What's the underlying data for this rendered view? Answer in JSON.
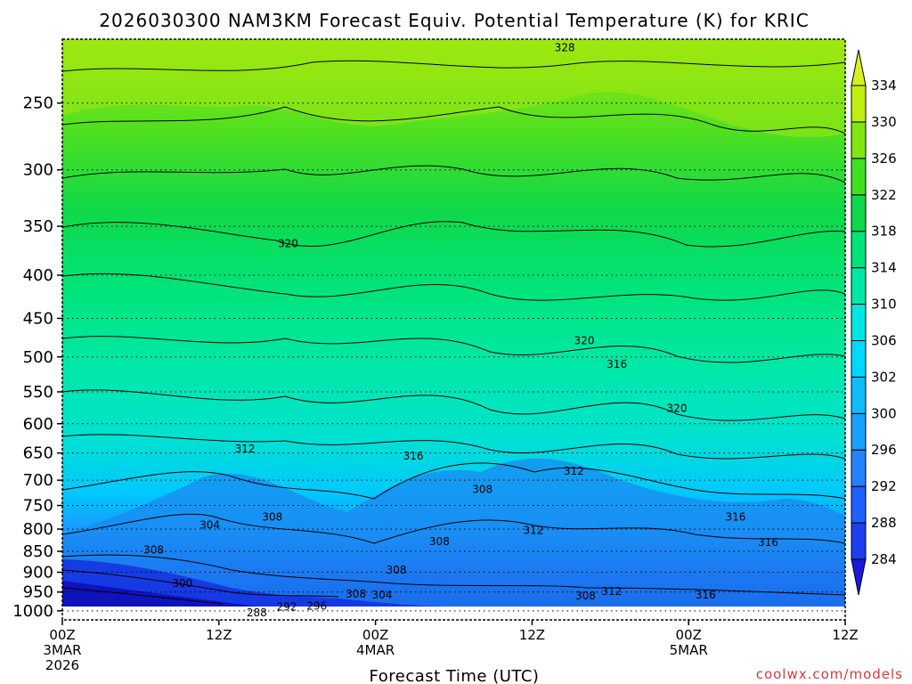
{
  "chart_data": {
    "type": "heatmap",
    "title": "2026030300 NAM3KM Forecast Equiv. Potential Temperature (K) for KRIC",
    "xlabel": "Forecast Time (UTC)",
    "ylabel": "",
    "credit": "coolwx.com/models",
    "y_axis": {
      "scale": "log-pressure",
      "range_hpa": [
        1025,
        210
      ],
      "ticks": [
        250,
        300,
        350,
        400,
        450,
        500,
        550,
        600,
        650,
        700,
        750,
        800,
        850,
        900,
        950,
        1000
      ]
    },
    "x_axis": {
      "range_hours": [
        0,
        60
      ],
      "ticks": [
        {
          "hour": 0,
          "label": [
            "00Z",
            "3MAR",
            "2026"
          ]
        },
        {
          "hour": 12,
          "label": [
            "12Z"
          ]
        },
        {
          "hour": 24,
          "label": [
            "00Z",
            "4MAR"
          ]
        },
        {
          "hour": 36,
          "label": [
            "12Z"
          ]
        },
        {
          "hour": 48,
          "label": [
            "00Z",
            "5MAR"
          ]
        },
        {
          "hour": 60,
          "label": [
            "12Z"
          ]
        }
      ]
    },
    "grid": "dotted horizontal at pressure ticks",
    "colorbar": {
      "placement": "right",
      "levels": [
        284,
        288,
        292,
        296,
        300,
        302,
        306,
        310,
        314,
        318,
        322,
        326,
        330,
        334
      ],
      "colors": [
        "#1a1ad8",
        "#1f3ef0",
        "#2060ff",
        "#2482ff",
        "#1aa0ff",
        "#10bcff",
        "#00d8ff",
        "#00e6e0",
        "#00e8a8",
        "#00e47a",
        "#10d84a",
        "#40e020",
        "#80e810",
        "#c0f010",
        "#d8f020"
      ]
    },
    "contour_labels": [
      {
        "value": "328",
        "hour": 38.5,
        "hpa": 215
      },
      {
        "value": "320",
        "hour": 17.3,
        "hpa": 367
      },
      {
        "value": "320",
        "hour": 40.0,
        "hpa": 478
      },
      {
        "value": "316",
        "hour": 42.5,
        "hpa": 510
      },
      {
        "value": "320",
        "hour": 47.1,
        "hpa": 575
      },
      {
        "value": "312",
        "hour": 14.0,
        "hpa": 643
      },
      {
        "value": "316",
        "hour": 26.9,
        "hpa": 655
      },
      {
        "value": "312",
        "hour": 39.2,
        "hpa": 683
      },
      {
        "value": "308",
        "hour": 32.2,
        "hpa": 718
      },
      {
        "value": "308",
        "hour": 16.1,
        "hpa": 774
      },
      {
        "value": "304",
        "hour": 11.3,
        "hpa": 791
      },
      {
        "value": "312",
        "hour": 36.1,
        "hpa": 803
      },
      {
        "value": "316",
        "hour": 51.6,
        "hpa": 774
      },
      {
        "value": "308",
        "hour": 7.0,
        "hpa": 847
      },
      {
        "value": "308",
        "hour": 28.9,
        "hpa": 828
      },
      {
        "value": "316",
        "hour": 54.1,
        "hpa": 830
      },
      {
        "value": "308",
        "hour": 25.6,
        "hpa": 895
      },
      {
        "value": "300",
        "hour": 9.2,
        "hpa": 928
      },
      {
        "value": "308",
        "hour": 22.5,
        "hpa": 955
      },
      {
        "value": "304",
        "hour": 24.5,
        "hpa": 958
      },
      {
        "value": "312",
        "hour": 42.1,
        "hpa": 948
      },
      {
        "value": "308",
        "hour": 40.1,
        "hpa": 960
      },
      {
        "value": "316",
        "hour": 49.3,
        "hpa": 957
      },
      {
        "value": "292",
        "hour": 17.2,
        "hpa": 990
      },
      {
        "value": "296",
        "hour": 19.5,
        "hpa": 987
      },
      {
        "value": "288",
        "hour": 14.9,
        "hpa": 1005
      }
    ]
  }
}
